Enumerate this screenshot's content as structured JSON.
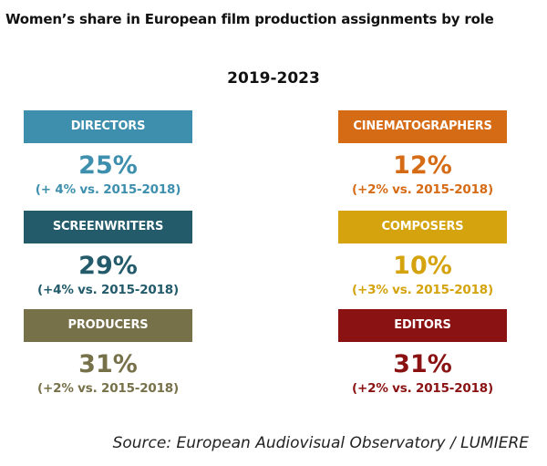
{
  "header": {
    "title": "Women’s share in European film production assignments by role",
    "period": "2019-2023"
  },
  "chart_data": {
    "type": "table",
    "title": "Women’s share in European film production assignments by role",
    "subtitle": "2019-2023",
    "unit": "%",
    "roles": [
      {
        "label": "DIRECTORS",
        "value": "25%",
        "change": "(+ 4% vs. 2015-2018)",
        "color": "#3d8fad"
      },
      {
        "label": "SCREENWRITERS",
        "value": "29%",
        "change": "(+4% vs. 2015-2018)",
        "color": "#235b6b"
      },
      {
        "label": "PRODUCERS",
        "value": "31%",
        "change": "(+2% vs. 2015-2018)",
        "color": "#77714a"
      },
      {
        "label": "CINEMATOGRAPHERS",
        "value": "12%",
        "change": "(+2% vs. 2015-2018)",
        "color": "#d66b16"
      },
      {
        "label": "COMPOSERS",
        "value": "10%",
        "change": "(+3% vs. 2015-2018)",
        "color": "#d4a30d"
      },
      {
        "label": "EDITORS",
        "value": "31%",
        "change": "(+2% vs. 2015-2018)",
        "color": "#8a1212"
      }
    ]
  },
  "footer": {
    "source": "Source: European Audiovisual Observatory / LUMIERE"
  }
}
